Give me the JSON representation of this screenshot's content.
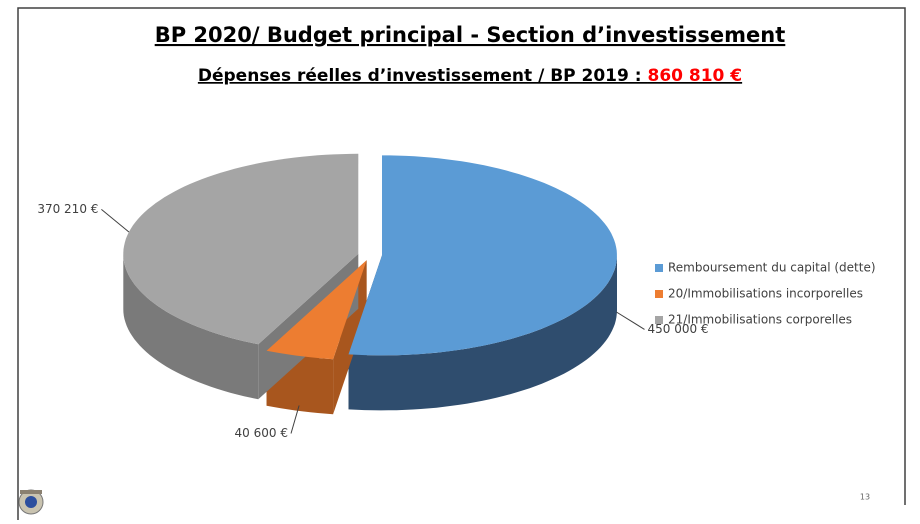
{
  "chart_data": {
    "type": "pie",
    "title": "BP 2020/ Budget principal - Section d’investissement",
    "subtitle": "Dépenses réelles d’investissement / BP 2019 : ",
    "total": {
      "value": 860810,
      "label": "860 810 €"
    },
    "categories": [
      "Remboursement du capital (dette)",
      "20/Immobilisations incorporelles",
      "21/Immobilisations corporelles"
    ],
    "values": [
      450000,
      40600,
      370210
    ],
    "value_labels": [
      "450 000 €",
      "40 600 €",
      "370 210 €"
    ],
    "colors": [
      "#5b9bd5",
      "#ed7d31",
      "#a5a5a5"
    ],
    "side_colors": [
      "#2f4d6e",
      "#a8561e",
      "#7a7a7a"
    ],
    "legend": "right"
  },
  "slide": {
    "page_number": 13
  }
}
